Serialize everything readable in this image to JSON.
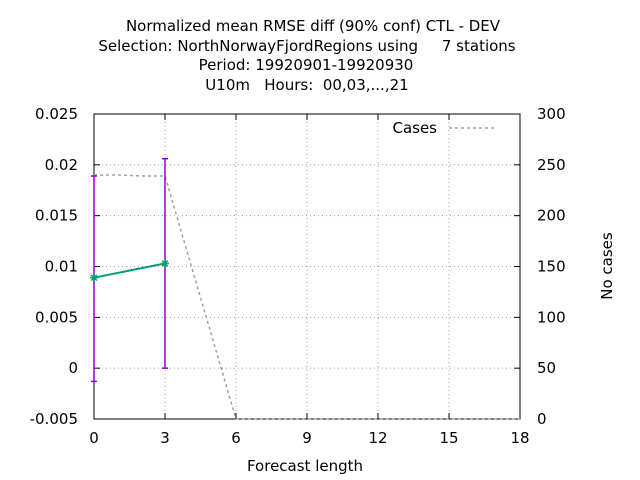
{
  "chart_data": {
    "type": "line",
    "title_lines": [
      "Normalized mean RMSE diff (90% conf) CTL - DEV",
      "Selection: NorthNorwayFjordRegions using     7 stations",
      "Period: 19920901-19920930",
      "U10m   Hours:  00,03,...,21"
    ],
    "xlabel": "Forecast length",
    "ylabel": "",
    "y2label": "No cases",
    "xlim": [
      0,
      18
    ],
    "ylim": [
      -0.005,
      0.025
    ],
    "y2lim": [
      0,
      300
    ],
    "x_ticks": [
      0,
      3,
      6,
      9,
      12,
      15,
      18
    ],
    "x_tick_labels": [
      "0",
      "3",
      "6",
      "9",
      "12",
      "15",
      "18"
    ],
    "y_ticks": [
      -0.005,
      0,
      0.005,
      0.01,
      0.015,
      0.02,
      0.025
    ],
    "y_tick_labels": [
      "-0.005",
      "0",
      "0.005",
      "0.01",
      "0.015",
      "0.02",
      "0.025"
    ],
    "y2_ticks": [
      0,
      50,
      100,
      150,
      200,
      250,
      300
    ],
    "y2_tick_labels": [
      "0",
      "50",
      "100",
      "150",
      "200",
      "250",
      "300"
    ],
    "grid": true,
    "legend_position": "top-right",
    "series": [
      {
        "type": "line-errorbar",
        "axis": "y",
        "color": "#009e73",
        "errorbar_color": "#9400d3",
        "x": [
          0,
          3
        ],
        "y": [
          0.0089,
          0.0103
        ],
        "err_low": [
          -0.0013,
          0.0
        ],
        "err_high": [
          0.0189,
          0.0206
        ]
      },
      {
        "name": "Cases",
        "type": "dashed-line",
        "axis": "y2",
        "color": "#a0a0a0",
        "x": [
          0,
          1,
          2,
          3,
          6,
          9,
          12,
          15,
          18
        ],
        "y": [
          240,
          240,
          239,
          239,
          0,
          0,
          0,
          0,
          0
        ]
      }
    ]
  }
}
